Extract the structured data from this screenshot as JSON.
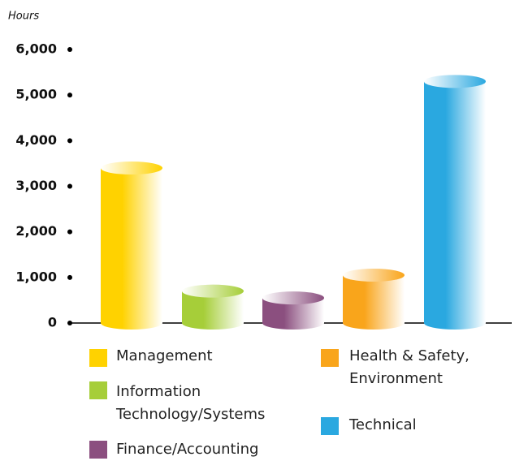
{
  "chart_data": {
    "type": "bar",
    "y_axis_label": "Hours",
    "categories": [
      "Management",
      "Information Technology/Systems",
      "Finance/Accounting",
      "Health & Safety, Environment",
      "Technical"
    ],
    "values": [
      3400,
      700,
      550,
      1050,
      5300
    ],
    "colors": [
      "#ffd200",
      "#a6ce39",
      "#8b4f7f",
      "#f9a51b",
      "#2aa8e0"
    ],
    "ylim": [
      0,
      6000
    ],
    "yticks": [
      0,
      {
        "value": 1000,
        "label": "1,000"
      },
      {
        "value": 2000,
        "label": "2,000"
      },
      {
        "value": 3000,
        "label": "3,000"
      },
      {
        "value": 4000,
        "label": "4,000"
      },
      {
        "value": 5000,
        "label": "5,000"
      },
      {
        "value": 6000,
        "label": "6,000"
      }
    ],
    "grid": false
  }
}
